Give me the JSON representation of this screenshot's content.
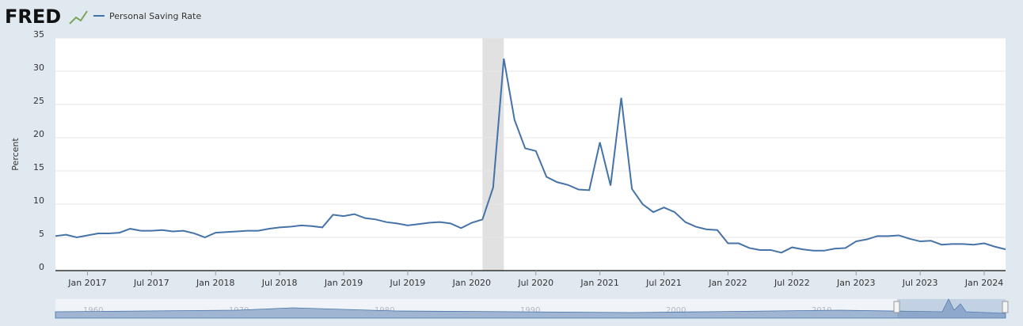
{
  "brand": "FRED",
  "chart_data": {
    "type": "line",
    "y_label": "Percent",
    "x": [
      "2016-10",
      "2016-11",
      "2016-12",
      "2017-01",
      "2017-02",
      "2017-03",
      "2017-04",
      "2017-05",
      "2017-06",
      "2017-07",
      "2017-08",
      "2017-09",
      "2017-10",
      "2017-11",
      "2017-12",
      "2018-01",
      "2018-02",
      "2018-03",
      "2018-04",
      "2018-05",
      "2018-06",
      "2018-07",
      "2018-08",
      "2018-09",
      "2018-10",
      "2018-11",
      "2018-12",
      "2019-01",
      "2019-02",
      "2019-03",
      "2019-04",
      "2019-05",
      "2019-06",
      "2019-07",
      "2019-08",
      "2019-09",
      "2019-10",
      "2019-11",
      "2019-12",
      "2020-01",
      "2020-02",
      "2020-03",
      "2020-04",
      "2020-05",
      "2020-06",
      "2020-07",
      "2020-08",
      "2020-09",
      "2020-10",
      "2020-11",
      "2020-12",
      "2021-01",
      "2021-02",
      "2021-03",
      "2021-04",
      "2021-05",
      "2021-06",
      "2021-07",
      "2021-08",
      "2021-09",
      "2021-10",
      "2021-11",
      "2021-12",
      "2022-01",
      "2022-02",
      "2022-03",
      "2022-04",
      "2022-05",
      "2022-06",
      "2022-07",
      "2022-08",
      "2022-09",
      "2022-10",
      "2022-11",
      "2022-12",
      "2023-01",
      "2023-02",
      "2023-03",
      "2023-04",
      "2023-05",
      "2023-06",
      "2023-07",
      "2023-08",
      "2023-09",
      "2023-10",
      "2023-11",
      "2023-12",
      "2024-01",
      "2024-02",
      "2024-03"
    ],
    "series": [
      {
        "name": "Personal Saving Rate",
        "color": "#4572a7",
        "values": [
          5.2,
          5.4,
          5.0,
          5.3,
          5.6,
          5.6,
          5.7,
          6.3,
          6.0,
          6.0,
          6.1,
          5.9,
          6.0,
          5.6,
          5.0,
          5.7,
          5.8,
          5.9,
          6.0,
          6.0,
          6.3,
          6.5,
          6.6,
          6.8,
          6.7,
          6.5,
          8.4,
          8.2,
          8.5,
          7.9,
          7.7,
          7.3,
          7.1,
          6.8,
          7.0,
          7.2,
          7.3,
          7.1,
          6.4,
          7.2,
          7.7,
          12.5,
          31.9,
          22.7,
          18.4,
          18.0,
          14.1,
          13.3,
          12.9,
          12.2,
          12.1,
          19.3,
          12.8,
          26.0,
          12.3,
          10.0,
          8.8,
          9.5,
          8.8,
          7.3,
          6.6,
          6.2,
          6.1,
          4.1,
          4.1,
          3.4,
          3.1,
          3.1,
          2.7,
          3.5,
          3.2,
          3.0,
          3.0,
          3.3,
          3.4,
          4.4,
          4.7,
          5.2,
          5.2,
          5.3,
          4.8,
          4.4,
          4.5,
          3.9,
          4.0,
          4.0,
          3.9,
          4.1,
          3.6,
          3.2
        ]
      }
    ],
    "xlim": [
      "2016-10",
      "2024-03"
    ],
    "xticks": [
      {
        "value": "2017-01",
        "label": "Jan 2017"
      },
      {
        "value": "2017-07",
        "label": "Jul 2017"
      },
      {
        "value": "2018-01",
        "label": "Jan 2018"
      },
      {
        "value": "2018-07",
        "label": "Jul 2018"
      },
      {
        "value": "2019-01",
        "label": "Jan 2019"
      },
      {
        "value": "2019-07",
        "label": "Jul 2019"
      },
      {
        "value": "2020-01",
        "label": "Jan 2020"
      },
      {
        "value": "2020-07",
        "label": "Jul 2020"
      },
      {
        "value": "2021-01",
        "label": "Jan 2021"
      },
      {
        "value": "2021-07",
        "label": "Jul 2021"
      },
      {
        "value": "2022-01",
        "label": "Jan 2022"
      },
      {
        "value": "2022-07",
        "label": "Jul 2022"
      },
      {
        "value": "2023-01",
        "label": "Jan 2023"
      },
      {
        "value": "2023-07",
        "label": "Jul 2023"
      },
      {
        "value": "2024-01",
        "label": "Jan 2024"
      }
    ],
    "ylim": [
      0,
      35
    ],
    "yticks": [
      0,
      5,
      10,
      15,
      20,
      25,
      30,
      35
    ],
    "grid": true,
    "shaded_range": [
      "2020-02",
      "2020-04"
    ],
    "navigator_labels": [
      "1960",
      "1970",
      "1980",
      "1990",
      "2000",
      "2010"
    ]
  }
}
